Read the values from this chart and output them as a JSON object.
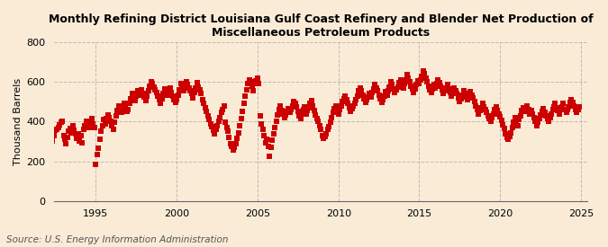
{
  "title": "Monthly Refining District Louisiana Gulf Coast Refinery and Blender Net Production of\nMiscellaneous Petroleum Products",
  "ylabel": "Thousand Barrels",
  "source": "Source: U.S. Energy Information Administration",
  "background_color": "#faebd7",
  "marker_color": "#cc0000",
  "marker": "s",
  "marker_size": 4.5,
  "ylim": [
    0,
    800
  ],
  "yticks": [
    0,
    200,
    400,
    600,
    800
  ],
  "xticks_years": [
    1995,
    2000,
    2005,
    2010,
    2015,
    2020,
    2025
  ],
  "grid_color": "#999999",
  "grid_style": "--",
  "grid_alpha": 0.6,
  "title_fontsize": 9.0,
  "axis_fontsize": 8.0,
  "source_fontsize": 7.5,
  "data": [
    [
      1992,
      1,
      265
    ],
    [
      1992,
      2,
      310
    ],
    [
      1992,
      3,
      350
    ],
    [
      1992,
      4,
      380
    ],
    [
      1992,
      5,
      300
    ],
    [
      1992,
      6,
      330
    ],
    [
      1992,
      7,
      355
    ],
    [
      1992,
      8,
      360
    ],
    [
      1992,
      9,
      370
    ],
    [
      1992,
      10,
      385
    ],
    [
      1992,
      11,
      395
    ],
    [
      1992,
      12,
      400
    ],
    [
      1993,
      1,
      330
    ],
    [
      1993,
      2,
      310
    ],
    [
      1993,
      3,
      290
    ],
    [
      1993,
      4,
      320
    ],
    [
      1993,
      5,
      350
    ],
    [
      1993,
      6,
      365
    ],
    [
      1993,
      7,
      345
    ],
    [
      1993,
      8,
      380
    ],
    [
      1993,
      9,
      355
    ],
    [
      1993,
      10,
      340
    ],
    [
      1993,
      11,
      315
    ],
    [
      1993,
      12,
      340
    ],
    [
      1994,
      1,
      300
    ],
    [
      1994,
      2,
      330
    ],
    [
      1994,
      3,
      295
    ],
    [
      1994,
      4,
      360
    ],
    [
      1994,
      5,
      380
    ],
    [
      1994,
      6,
      400
    ],
    [
      1994,
      7,
      385
    ],
    [
      1994,
      8,
      370
    ],
    [
      1994,
      9,
      390
    ],
    [
      1994,
      10,
      415
    ],
    [
      1994,
      11,
      390
    ],
    [
      1994,
      12,
      370
    ],
    [
      1995,
      1,
      185
    ],
    [
      1995,
      2,
      235
    ],
    [
      1995,
      3,
      265
    ],
    [
      1995,
      4,
      310
    ],
    [
      1995,
      5,
      350
    ],
    [
      1995,
      6,
      380
    ],
    [
      1995,
      7,
      410
    ],
    [
      1995,
      8,
      390
    ],
    [
      1995,
      9,
      415
    ],
    [
      1995,
      10,
      435
    ],
    [
      1995,
      11,
      420
    ],
    [
      1995,
      12,
      400
    ],
    [
      1996,
      1,
      380
    ],
    [
      1996,
      2,
      360
    ],
    [
      1996,
      3,
      395
    ],
    [
      1996,
      4,
      430
    ],
    [
      1996,
      5,
      455
    ],
    [
      1996,
      6,
      480
    ],
    [
      1996,
      7,
      460
    ],
    [
      1996,
      8,
      445
    ],
    [
      1996,
      9,
      470
    ],
    [
      1996,
      10,
      490
    ],
    [
      1996,
      11,
      465
    ],
    [
      1996,
      12,
      450
    ],
    [
      1997,
      1,
      460
    ],
    [
      1997,
      2,
      490
    ],
    [
      1997,
      3,
      515
    ],
    [
      1997,
      4,
      540
    ],
    [
      1997,
      5,
      520
    ],
    [
      1997,
      6,
      505
    ],
    [
      1997,
      7,
      530
    ],
    [
      1997,
      8,
      555
    ],
    [
      1997,
      9,
      535
    ],
    [
      1997,
      10,
      545
    ],
    [
      1997,
      11,
      560
    ],
    [
      1997,
      12,
      540
    ],
    [
      1998,
      1,
      525
    ],
    [
      1998,
      2,
      505
    ],
    [
      1998,
      3,
      530
    ],
    [
      1998,
      4,
      555
    ],
    [
      1998,
      5,
      580
    ],
    [
      1998,
      6,
      600
    ],
    [
      1998,
      7,
      590
    ],
    [
      1998,
      8,
      575
    ],
    [
      1998,
      9,
      560
    ],
    [
      1998,
      10,
      545
    ],
    [
      1998,
      11,
      530
    ],
    [
      1998,
      12,
      510
    ],
    [
      1999,
      1,
      490
    ],
    [
      1999,
      2,
      515
    ],
    [
      1999,
      3,
      540
    ],
    [
      1999,
      4,
      565
    ],
    [
      1999,
      5,
      550
    ],
    [
      1999,
      6,
      535
    ],
    [
      1999,
      7,
      555
    ],
    [
      1999,
      8,
      570
    ],
    [
      1999,
      9,
      545
    ],
    [
      1999,
      10,
      530
    ],
    [
      1999,
      11,
      510
    ],
    [
      1999,
      12,
      495
    ],
    [
      2000,
      1,
      510
    ],
    [
      2000,
      2,
      535
    ],
    [
      2000,
      3,
      560
    ],
    [
      2000,
      4,
      590
    ],
    [
      2000,
      5,
      570
    ],
    [
      2000,
      6,
      555
    ],
    [
      2000,
      7,
      580
    ],
    [
      2000,
      8,
      600
    ],
    [
      2000,
      9,
      585
    ],
    [
      2000,
      10,
      570
    ],
    [
      2000,
      11,
      555
    ],
    [
      2000,
      12,
      540
    ],
    [
      2001,
      1,
      520
    ],
    [
      2001,
      2,
      545
    ],
    [
      2001,
      3,
      570
    ],
    [
      2001,
      4,
      595
    ],
    [
      2001,
      5,
      575
    ],
    [
      2001,
      6,
      560
    ],
    [
      2001,
      7,
      540
    ],
    [
      2001,
      8,
      510
    ],
    [
      2001,
      9,
      490
    ],
    [
      2001,
      10,
      470
    ],
    [
      2001,
      11,
      450
    ],
    [
      2001,
      12,
      430
    ],
    [
      2002,
      1,
      410
    ],
    [
      2002,
      2,
      390
    ],
    [
      2002,
      3,
      375
    ],
    [
      2002,
      4,
      355
    ],
    [
      2002,
      5,
      340
    ],
    [
      2002,
      6,
      360
    ],
    [
      2002,
      7,
      380
    ],
    [
      2002,
      8,
      400
    ],
    [
      2002,
      9,
      420
    ],
    [
      2002,
      10,
      445
    ],
    [
      2002,
      11,
      460
    ],
    [
      2002,
      12,
      480
    ],
    [
      2003,
      1,
      395
    ],
    [
      2003,
      2,
      370
    ],
    [
      2003,
      3,
      350
    ],
    [
      2003,
      4,
      320
    ],
    [
      2003,
      5,
      290
    ],
    [
      2003,
      6,
      275
    ],
    [
      2003,
      7,
      255
    ],
    [
      2003,
      8,
      270
    ],
    [
      2003,
      9,
      290
    ],
    [
      2003,
      10,
      315
    ],
    [
      2003,
      11,
      345
    ],
    [
      2003,
      12,
      380
    ],
    [
      2004,
      1,
      415
    ],
    [
      2004,
      2,
      450
    ],
    [
      2004,
      3,
      490
    ],
    [
      2004,
      4,
      530
    ],
    [
      2004,
      5,
      560
    ],
    [
      2004,
      6,
      590
    ],
    [
      2004,
      7,
      610
    ],
    [
      2004,
      8,
      600
    ],
    [
      2004,
      9,
      580
    ],
    [
      2004,
      10,
      555
    ],
    [
      2004,
      11,
      590
    ],
    [
      2004,
      12,
      605
    ],
    [
      2005,
      1,
      620
    ],
    [
      2005,
      2,
      590
    ],
    [
      2005,
      3,
      430
    ],
    [
      2005,
      4,
      390
    ],
    [
      2005,
      5,
      360
    ],
    [
      2005,
      6,
      330
    ],
    [
      2005,
      7,
      295
    ],
    [
      2005,
      8,
      310
    ],
    [
      2005,
      9,
      275
    ],
    [
      2005,
      10,
      225
    ],
    [
      2005,
      11,
      270
    ],
    [
      2005,
      12,
      305
    ],
    [
      2006,
      1,
      340
    ],
    [
      2006,
      2,
      370
    ],
    [
      2006,
      3,
      400
    ],
    [
      2006,
      4,
      435
    ],
    [
      2006,
      5,
      460
    ],
    [
      2006,
      6,
      480
    ],
    [
      2006,
      7,
      455
    ],
    [
      2006,
      8,
      440
    ],
    [
      2006,
      9,
      420
    ],
    [
      2006,
      10,
      435
    ],
    [
      2006,
      11,
      450
    ],
    [
      2006,
      12,
      465
    ],
    [
      2007,
      1,
      445
    ],
    [
      2007,
      2,
      460
    ],
    [
      2007,
      3,
      480
    ],
    [
      2007,
      4,
      500
    ],
    [
      2007,
      5,
      490
    ],
    [
      2007,
      6,
      475
    ],
    [
      2007,
      7,
      450
    ],
    [
      2007,
      8,
      430
    ],
    [
      2007,
      9,
      415
    ],
    [
      2007,
      10,
      440
    ],
    [
      2007,
      11,
      460
    ],
    [
      2007,
      12,
      475
    ],
    [
      2008,
      1,
      440
    ],
    [
      2008,
      2,
      455
    ],
    [
      2008,
      3,
      470
    ],
    [
      2008,
      4,
      490
    ],
    [
      2008,
      5,
      505
    ],
    [
      2008,
      6,
      480
    ],
    [
      2008,
      7,
      455
    ],
    [
      2008,
      8,
      435
    ],
    [
      2008,
      9,
      415
    ],
    [
      2008,
      10,
      400
    ],
    [
      2008,
      11,
      380
    ],
    [
      2008,
      12,
      360
    ],
    [
      2009,
      1,
      330
    ],
    [
      2009,
      2,
      315
    ],
    [
      2009,
      3,
      325
    ],
    [
      2009,
      4,
      340
    ],
    [
      2009,
      5,
      360
    ],
    [
      2009,
      6,
      375
    ],
    [
      2009,
      7,
      395
    ],
    [
      2009,
      8,
      420
    ],
    [
      2009,
      9,
      445
    ],
    [
      2009,
      10,
      465
    ],
    [
      2009,
      11,
      480
    ],
    [
      2009,
      12,
      460
    ],
    [
      2010,
      1,
      440
    ],
    [
      2010,
      2,
      460
    ],
    [
      2010,
      3,
      480
    ],
    [
      2010,
      4,
      500
    ],
    [
      2010,
      5,
      515
    ],
    [
      2010,
      6,
      530
    ],
    [
      2010,
      7,
      510
    ],
    [
      2010,
      8,
      490
    ],
    [
      2010,
      9,
      470
    ],
    [
      2010,
      10,
      450
    ],
    [
      2010,
      11,
      465
    ],
    [
      2010,
      12,
      480
    ],
    [
      2011,
      1,
      490
    ],
    [
      2011,
      2,
      510
    ],
    [
      2011,
      3,
      530
    ],
    [
      2011,
      4,
      555
    ],
    [
      2011,
      5,
      570
    ],
    [
      2011,
      6,
      555
    ],
    [
      2011,
      7,
      535
    ],
    [
      2011,
      8,
      515
    ],
    [
      2011,
      9,
      495
    ],
    [
      2011,
      10,
      510
    ],
    [
      2011,
      11,
      525
    ],
    [
      2011,
      12,
      540
    ],
    [
      2012,
      1,
      525
    ],
    [
      2012,
      2,
      545
    ],
    [
      2012,
      3,
      565
    ],
    [
      2012,
      4,
      585
    ],
    [
      2012,
      5,
      570
    ],
    [
      2012,
      6,
      555
    ],
    [
      2012,
      7,
      535
    ],
    [
      2012,
      8,
      515
    ],
    [
      2012,
      9,
      495
    ],
    [
      2012,
      10,
      510
    ],
    [
      2012,
      11,
      530
    ],
    [
      2012,
      12,
      550
    ],
    [
      2013,
      1,
      535
    ],
    [
      2013,
      2,
      555
    ],
    [
      2013,
      3,
      575
    ],
    [
      2013,
      4,
      600
    ],
    [
      2013,
      5,
      585
    ],
    [
      2013,
      6,
      565
    ],
    [
      2013,
      7,
      545
    ],
    [
      2013,
      8,
      560
    ],
    [
      2013,
      9,
      575
    ],
    [
      2013,
      10,
      595
    ],
    [
      2013,
      11,
      610
    ],
    [
      2013,
      12,
      590
    ],
    [
      2014,
      1,
      570
    ],
    [
      2014,
      2,
      590
    ],
    [
      2014,
      3,
      610
    ],
    [
      2014,
      4,
      635
    ],
    [
      2014,
      5,
      620
    ],
    [
      2014,
      6,
      600
    ],
    [
      2014,
      7,
      580
    ],
    [
      2014,
      8,
      565
    ],
    [
      2014,
      9,
      545
    ],
    [
      2014,
      10,
      565
    ],
    [
      2014,
      11,
      585
    ],
    [
      2014,
      12,
      605
    ],
    [
      2015,
      1,
      590
    ],
    [
      2015,
      2,
      610
    ],
    [
      2015,
      3,
      630
    ],
    [
      2015,
      4,
      655
    ],
    [
      2015,
      5,
      640
    ],
    [
      2015,
      6,
      620
    ],
    [
      2015,
      7,
      600
    ],
    [
      2015,
      8,
      580
    ],
    [
      2015,
      9,
      560
    ],
    [
      2015,
      10,
      545
    ],
    [
      2015,
      11,
      565
    ],
    [
      2015,
      12,
      585
    ],
    [
      2016,
      1,
      570
    ],
    [
      2016,
      2,
      590
    ],
    [
      2016,
      3,
      610
    ],
    [
      2016,
      4,
      595
    ],
    [
      2016,
      5,
      580
    ],
    [
      2016,
      6,
      560
    ],
    [
      2016,
      7,
      540
    ],
    [
      2016,
      8,
      555
    ],
    [
      2016,
      9,
      570
    ],
    [
      2016,
      10,
      585
    ],
    [
      2016,
      11,
      565
    ],
    [
      2016,
      12,
      545
    ],
    [
      2017,
      1,
      530
    ],
    [
      2017,
      2,
      550
    ],
    [
      2017,
      3,
      570
    ],
    [
      2017,
      4,
      555
    ],
    [
      2017,
      5,
      540
    ],
    [
      2017,
      6,
      520
    ],
    [
      2017,
      7,
      500
    ],
    [
      2017,
      8,
      515
    ],
    [
      2017,
      9,
      535
    ],
    [
      2017,
      10,
      555
    ],
    [
      2017,
      11,
      540
    ],
    [
      2017,
      12,
      525
    ],
    [
      2018,
      1,
      510
    ],
    [
      2018,
      2,
      530
    ],
    [
      2018,
      3,
      550
    ],
    [
      2018,
      4,
      535
    ],
    [
      2018,
      5,
      520
    ],
    [
      2018,
      6,
      500
    ],
    [
      2018,
      7,
      480
    ],
    [
      2018,
      8,
      460
    ],
    [
      2018,
      9,
      440
    ],
    [
      2018,
      10,
      455
    ],
    [
      2018,
      11,
      470
    ],
    [
      2018,
      12,
      490
    ],
    [
      2019,
      1,
      475
    ],
    [
      2019,
      2,
      460
    ],
    [
      2019,
      3,
      445
    ],
    [
      2019,
      4,
      430
    ],
    [
      2019,
      5,
      415
    ],
    [
      2019,
      6,
      400
    ],
    [
      2019,
      7,
      420
    ],
    [
      2019,
      8,
      440
    ],
    [
      2019,
      9,
      460
    ],
    [
      2019,
      10,
      475
    ],
    [
      2019,
      11,
      455
    ],
    [
      2019,
      12,
      440
    ],
    [
      2020,
      1,
      425
    ],
    [
      2020,
      2,
      405
    ],
    [
      2020,
      3,
      385
    ],
    [
      2020,
      4,
      365
    ],
    [
      2020,
      5,
      340
    ],
    [
      2020,
      6,
      320
    ],
    [
      2020,
      7,
      310
    ],
    [
      2020,
      8,
      325
    ],
    [
      2020,
      9,
      345
    ],
    [
      2020,
      10,
      370
    ],
    [
      2020,
      11,
      395
    ],
    [
      2020,
      12,
      420
    ],
    [
      2021,
      1,
      400
    ],
    [
      2021,
      2,
      380
    ],
    [
      2021,
      3,
      410
    ],
    [
      2021,
      4,
      430
    ],
    [
      2021,
      5,
      455
    ],
    [
      2021,
      6,
      470
    ],
    [
      2021,
      7,
      450
    ],
    [
      2021,
      8,
      465
    ],
    [
      2021,
      9,
      480
    ],
    [
      2021,
      10,
      460
    ],
    [
      2021,
      11,
      440
    ],
    [
      2021,
      12,
      455
    ],
    [
      2022,
      1,
      440
    ],
    [
      2022,
      2,
      420
    ],
    [
      2022,
      3,
      400
    ],
    [
      2022,
      4,
      380
    ],
    [
      2022,
      5,
      395
    ],
    [
      2022,
      6,
      415
    ],
    [
      2022,
      7,
      435
    ],
    [
      2022,
      8,
      450
    ],
    [
      2022,
      9,
      465
    ],
    [
      2022,
      10,
      445
    ],
    [
      2022,
      11,
      430
    ],
    [
      2022,
      12,
      415
    ],
    [
      2023,
      1,
      400
    ],
    [
      2023,
      2,
      420
    ],
    [
      2023,
      3,
      440
    ],
    [
      2023,
      4,
      460
    ],
    [
      2023,
      5,
      475
    ],
    [
      2023,
      6,
      490
    ],
    [
      2023,
      7,
      470
    ],
    [
      2023,
      8,
      455
    ],
    [
      2023,
      9,
      440
    ],
    [
      2023,
      10,
      460
    ],
    [
      2023,
      11,
      475
    ],
    [
      2023,
      12,
      490
    ],
    [
      2024,
      1,
      460
    ],
    [
      2024,
      2,
      445
    ],
    [
      2024,
      3,
      460
    ],
    [
      2024,
      4,
      475
    ],
    [
      2024,
      5,
      495
    ],
    [
      2024,
      6,
      510
    ],
    [
      2024,
      7,
      495
    ],
    [
      2024,
      8,
      480
    ],
    [
      2024,
      9,
      460
    ],
    [
      2024,
      10,
      445
    ],
    [
      2024,
      11,
      460
    ],
    [
      2024,
      12,
      475
    ]
  ]
}
